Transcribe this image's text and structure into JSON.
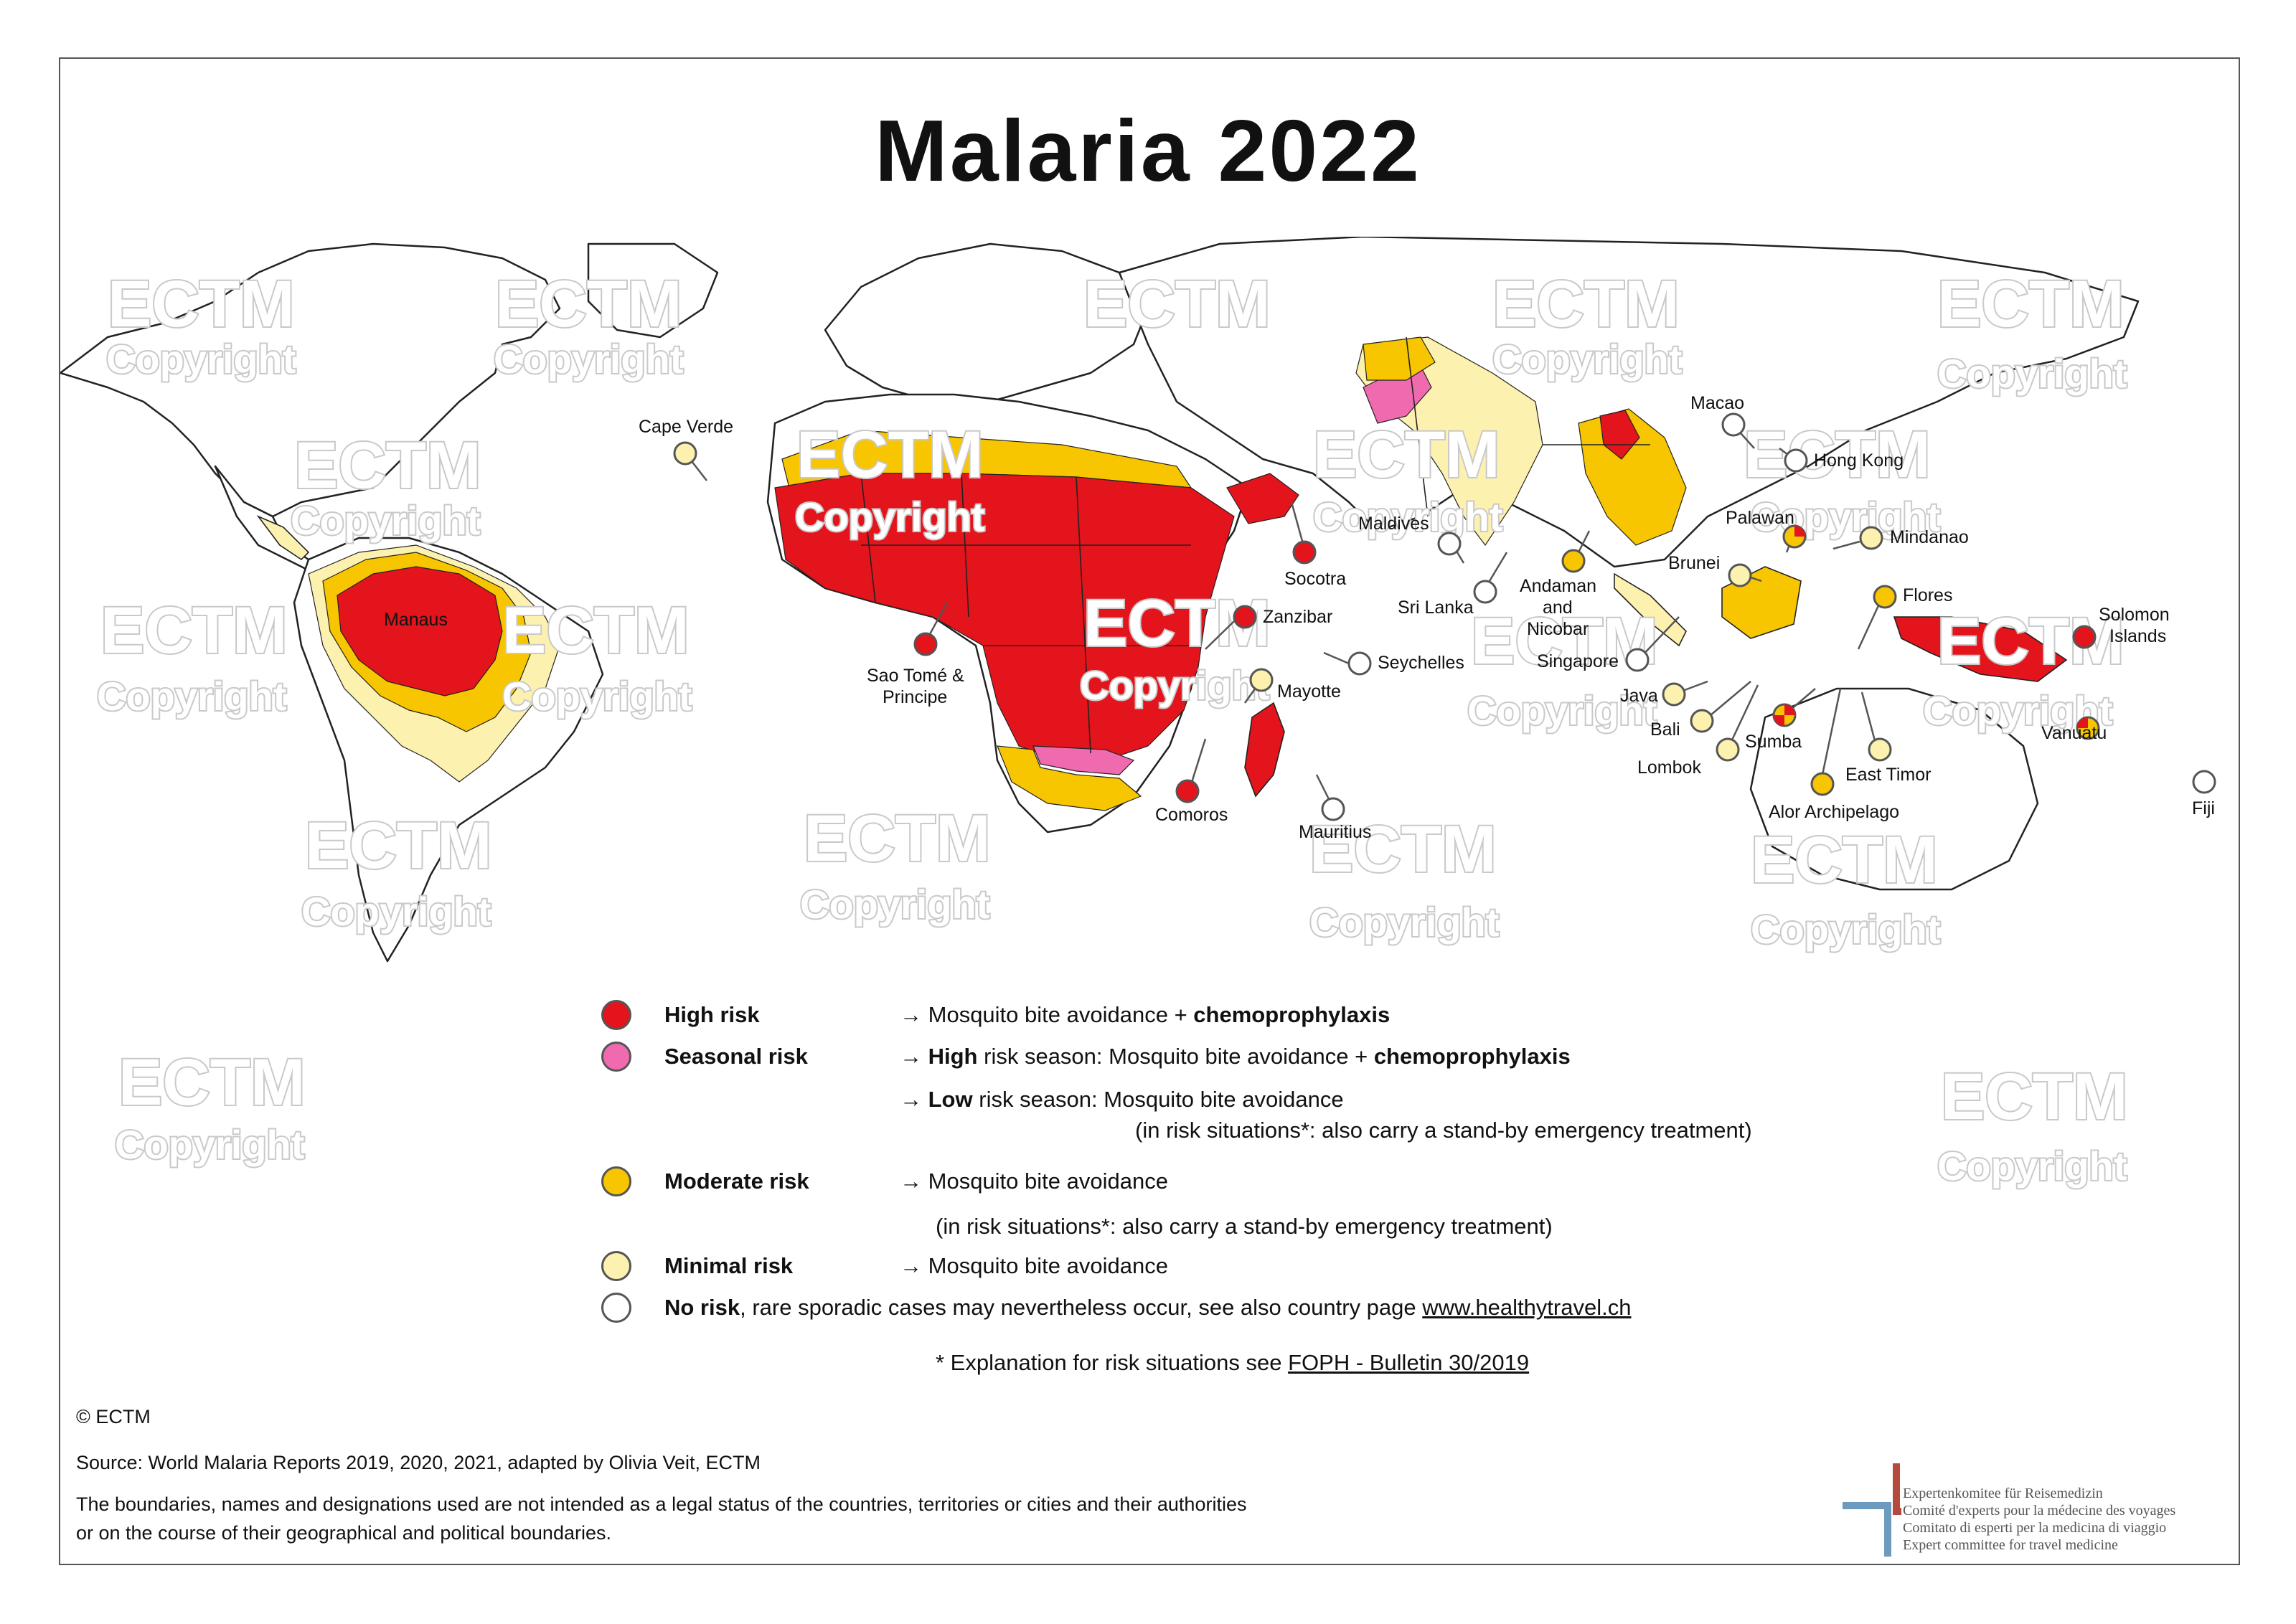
{
  "title": "Malaria 2022",
  "colors": {
    "high": "#e3141b",
    "seasonal": "#f06aaf",
    "moderate": "#f7c600",
    "minimal": "#fdf1b0",
    "none": "#ffffff",
    "outline": "#555555",
    "logo_red": "#b5493b",
    "logo_blue": "#6c9bbf"
  },
  "watermark": {
    "main": "ECTM",
    "sub": "Copyright"
  },
  "callouts": [
    {
      "label": "Cape Verde",
      "risk": "minimal"
    },
    {
      "label": "Manaus",
      "risk": "none"
    },
    {
      "label": "Sao Tomé &",
      "risk": "high"
    },
    {
      "label": "Principe",
      "risk": "high"
    },
    {
      "label": "Socotra",
      "risk": "high"
    },
    {
      "label": "Zanzibar",
      "risk": "high"
    },
    {
      "label": "Mayotte",
      "risk": "minimal"
    },
    {
      "label": "Comoros",
      "risk": "high"
    },
    {
      "label": "Seychelles",
      "risk": "none"
    },
    {
      "label": "Mauritius",
      "risk": "none"
    },
    {
      "label": "Maldives",
      "risk": "none"
    },
    {
      "label": "Sri Lanka",
      "risk": "none"
    },
    {
      "label": "Andaman",
      "risk": "moderate"
    },
    {
      "label": "and",
      "risk": "moderate"
    },
    {
      "label": "Nicobar",
      "risk": "moderate"
    },
    {
      "label": "Macao",
      "risk": "none"
    },
    {
      "label": "Hong Kong",
      "risk": "none"
    },
    {
      "label": "Palawan",
      "risk": "high-moderate"
    },
    {
      "label": "Mindanao",
      "risk": "minimal"
    },
    {
      "label": "Brunei",
      "risk": "minimal"
    },
    {
      "label": "Flores",
      "risk": "moderate"
    },
    {
      "label": "Singapore",
      "risk": "none"
    },
    {
      "label": "Java",
      "risk": "minimal"
    },
    {
      "label": "Bali",
      "risk": "minimal"
    },
    {
      "label": "Lombok",
      "risk": "minimal"
    },
    {
      "label": "Sumba",
      "risk": "high-moderate"
    },
    {
      "label": "East Timor",
      "risk": "minimal"
    },
    {
      "label": "Alor Archipelago",
      "risk": "moderate"
    },
    {
      "label": "Solomon",
      "risk": "high"
    },
    {
      "label": "Islands",
      "risk": "high"
    },
    {
      "label": "Vanuatu",
      "risk": "high-moderate"
    },
    {
      "label": "Fiji",
      "risk": "none"
    }
  ],
  "legend": {
    "high": {
      "name": "High risk",
      "arrow": "→",
      "text": "Mosquito bite avoidance +",
      "bold": "chemoprophylaxis"
    },
    "seasonal": {
      "name": "Seasonal risk",
      "arrow": "→",
      "lead_bold": "High",
      "text": "risk season: Mosquito bite avoidance +",
      "bold": "chemoprophylaxis"
    },
    "seasonal_low": {
      "arrow": "→",
      "lead_bold": "Low",
      "text": "risk season:  Mosquito bite avoidance"
    },
    "seasonal_low_note": "(in risk situations*: also carry a stand-by emergency treatment)",
    "moderate": {
      "name": "Moderate risk",
      "arrow": "→",
      "text": "Mosquito bite avoidance"
    },
    "moderate_note": "(in risk situations*: also carry a stand-by emergency treatment)",
    "minimal": {
      "name": "Minimal risk",
      "arrow": "→",
      "text": "Mosquito bite avoidance"
    },
    "none": {
      "name": "No risk",
      "text": ", rare sporadic cases may nevertheless occur, see also country page",
      "link": "www.healthytravel.ch"
    },
    "footnote": "* Explanation for risk situations see",
    "footnote_link": "FOPH - Bulletin 30/2019"
  },
  "footer": {
    "copyright": "© ECTM",
    "source": "Source: World Malaria Reports 2019, 2020, 2021, adapted by Olivia Veit, ECTM",
    "disclaimer_1": "The boundaries, names and designations used are not intended as a legal status of the countries, territories or cities and their authorities",
    "disclaimer_2": "or on the course of their geographical and political boundaries."
  },
  "logo": {
    "line1": "Expertenkomitee für Reisemedizin",
    "line2": "Comité d'experts pour la médecine des voyages",
    "line3": "Comitato di esperti per la medicina di viaggio",
    "line4": "Expert committee for travel medicine"
  }
}
